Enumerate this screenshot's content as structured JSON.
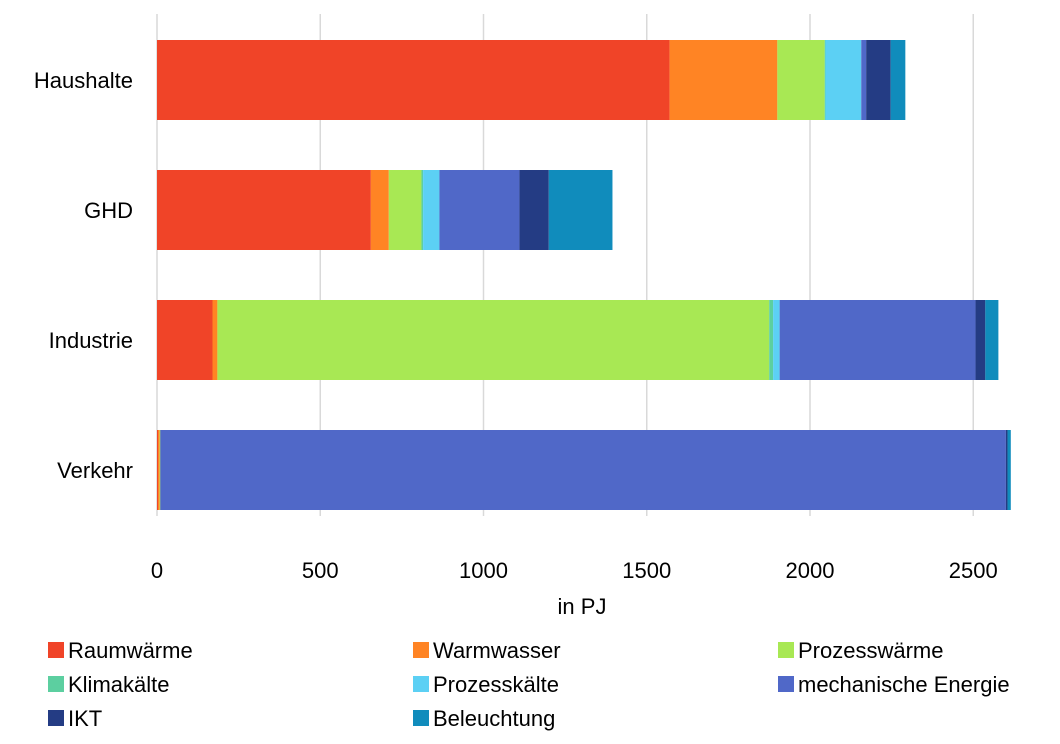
{
  "chart_data": {
    "type": "bar",
    "orientation": "horizontal",
    "stacked": true,
    "categories": [
      "Haushalte",
      "GHD",
      "Industrie",
      "Verkehr"
    ],
    "series": [
      {
        "name": "Raumwärme",
        "color": "#f04428",
        "values": [
          1570,
          655,
          170,
          3
        ]
      },
      {
        "name": "Warmwasser",
        "color": "#ff8424",
        "values": [
          330,
          55,
          15,
          5
        ]
      },
      {
        "name": "Prozesswärme",
        "color": "#a8e854",
        "values": [
          145,
          100,
          1690,
          2
        ]
      },
      {
        "name": "Klimakälte",
        "color": "#5ccfa0",
        "values": [
          2,
          5,
          12,
          0
        ]
      },
      {
        "name": "Prozesskälte",
        "color": "#5cd0f4",
        "values": [
          110,
          50,
          20,
          0
        ]
      },
      {
        "name": "mechanische Energie",
        "color": "#5068c8",
        "values": [
          15,
          245,
          600,
          2590
        ]
      },
      {
        "name": "IKT",
        "color": "#243c84",
        "values": [
          75,
          90,
          30,
          5
        ]
      },
      {
        "name": "Beleuchtung",
        "color": "#108cbc",
        "values": [
          45,
          195,
          40,
          10
        ]
      }
    ],
    "xlabel": "in PJ",
    "ylabel": "",
    "xlim": [
      0,
      2600
    ],
    "xticks": [
      0,
      500,
      1000,
      1500,
      2000,
      2500
    ],
    "xtick_labels": [
      "0",
      "500",
      "1000",
      "1500",
      "2000",
      "2500"
    ],
    "grid": "vertical",
    "legend_position": "bottom"
  }
}
